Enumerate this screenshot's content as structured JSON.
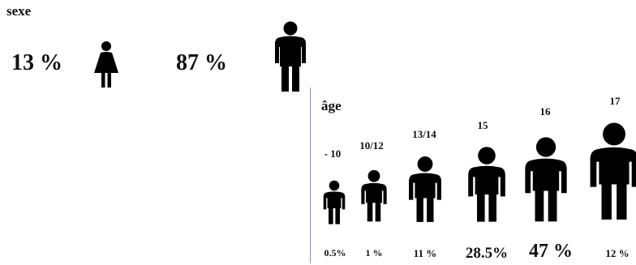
{
  "sexe": {
    "title": "sexe",
    "female_percent": "13 %",
    "male_percent": "87 %",
    "female_icon": "female-figure-icon",
    "male_icon": "male-figure-icon"
  },
  "age": {
    "title": "âge",
    "groups": [
      {
        "label": "- 10",
        "percent": "0.5%"
      },
      {
        "label": "10/12",
        "percent": "1 %"
      },
      {
        "label": "13/14",
        "percent": "11 %"
      },
      {
        "label": "15",
        "percent": "28.5%"
      },
      {
        "label": "16",
        "percent": "47 %"
      },
      {
        "label": "17",
        "percent": "12 %"
      }
    ]
  },
  "colors": {
    "figure": "#000000",
    "divider": "#8a8fc8"
  }
}
